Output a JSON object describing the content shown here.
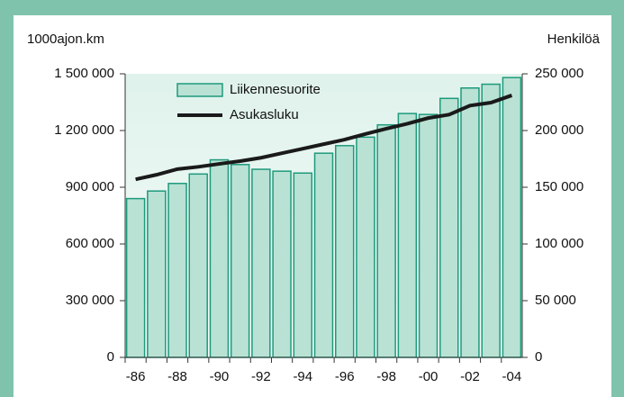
{
  "chart_data": {
    "type": "bar_line",
    "y_label": "1000ajon.km",
    "y2_label": "Henkilöä",
    "categories": [
      "-86",
      null,
      "-88",
      null,
      "-90",
      null,
      "-92",
      null,
      "-94",
      null,
      "-96",
      null,
      "-98",
      null,
      "-00",
      null,
      "-02",
      null,
      "-04"
    ],
    "series": [
      {
        "name": "Liikennesuorite",
        "type": "bar",
        "color": "#b9e2d4",
        "edge": "#1e9a7c",
        "values": [
          840000,
          880000,
          920000,
          970000,
          1045000,
          1020000,
          995000,
          985000,
          975000,
          1080000,
          1120000,
          1165000,
          1230000,
          1290000,
          1285000,
          1370000,
          1425000,
          1445000,
          1480000
        ]
      },
      {
        "name": "Asukasluku",
        "type": "line",
        "axis": "y2",
        "color": "#1a1a1a",
        "values": [
          157000,
          161000,
          166000,
          168000,
          170600,
          173000,
          176000,
          180000,
          184000,
          188000,
          192000,
          197000,
          201600,
          206000,
          211000,
          214000,
          222000,
          224600,
          231000
        ]
      }
    ],
    "ylim": [
      0,
      1500000
    ],
    "yticks": [
      0,
      {
        "value": 300000,
        "label": "300 000"
      },
      {
        "value": 600000,
        "label": "600 000"
      },
      {
        "value": 900000,
        "label": "900 000"
      },
      {
        "value": 1200000,
        "label": "1 200 000"
      },
      {
        "value": 1500000,
        "label": "1 500 000"
      }
    ],
    "y2lim": [
      0,
      250000
    ],
    "y2ticks": [
      0,
      {
        "value": 50000,
        "label": "50 000"
      },
      {
        "value": 100000,
        "label": "100 000"
      },
      {
        "value": 150000,
        "label": "150 000"
      },
      {
        "value": 200000,
        "label": "200 000"
      },
      {
        "value": 250000,
        "label": "250 000"
      }
    ],
    "legend": "top-left"
  }
}
